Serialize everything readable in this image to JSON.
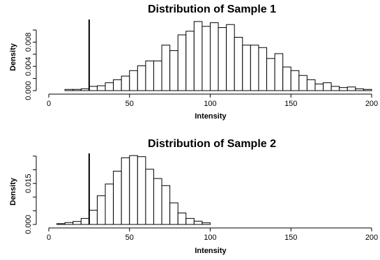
{
  "chart_data": [
    {
      "type": "histogram",
      "title": "Distribution of Sample 1",
      "xlabel": "Intensity",
      "ylabel": "Density",
      "xlim": [
        0,
        200
      ],
      "x_ticks": [
        0,
        50,
        100,
        150,
        200
      ],
      "ylim": [
        0,
        0.0115
      ],
      "y_ticks": [
        0.0,
        0.002,
        0.004,
        0.006,
        0.008,
        0.01
      ],
      "y_tick_labels": [
        "0.000",
        "",
        "0.004",
        "",
        "0.008",
        ""
      ],
      "bin_width": 5,
      "bin_start": 10,
      "values": [
        0.0002,
        0.0002,
        0.0003,
        0.0007,
        0.0008,
        0.0013,
        0.0018,
        0.0024,
        0.0033,
        0.0041,
        0.0049,
        0.0049,
        0.0075,
        0.0066,
        0.0092,
        0.0098,
        0.0114,
        0.0106,
        0.0112,
        0.0104,
        0.0109,
        0.0088,
        0.0075,
        0.0075,
        0.0071,
        0.0053,
        0.0061,
        0.0039,
        0.0033,
        0.0025,
        0.0018,
        0.0011,
        0.0013,
        0.0007,
        0.0005,
        0.0006,
        0.0003,
        0.0002
      ],
      "vline": 25,
      "grid": false
    },
    {
      "type": "histogram",
      "title": "Distribution of Sample 2",
      "xlabel": "Intensity",
      "ylabel": "Density",
      "xlim": [
        0,
        200
      ],
      "x_ticks": [
        0,
        50,
        100,
        150,
        200
      ],
      "ylim": [
        0,
        0.0255
      ],
      "y_ticks": [
        0.0,
        0.005,
        0.01,
        0.015,
        0.02,
        0.025
      ],
      "y_tick_labels": [
        "0.000",
        "",
        "",
        "0.015",
        "",
        ""
      ],
      "bin_width": 5,
      "bin_start": 5,
      "values": [
        0.0003,
        0.0007,
        0.0011,
        0.0022,
        0.0052,
        0.0105,
        0.0148,
        0.0195,
        0.0244,
        0.0252,
        0.0248,
        0.0202,
        0.0168,
        0.0142,
        0.0079,
        0.0042,
        0.0022,
        0.0012,
        0.0006
      ],
      "vline": 25,
      "grid": false
    }
  ]
}
